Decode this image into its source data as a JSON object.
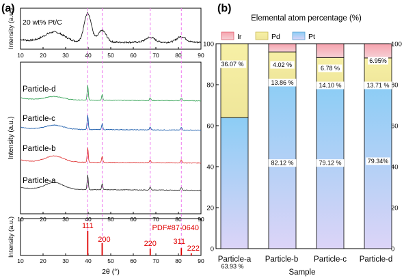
{
  "panels": {
    "a_label": "(a)",
    "b_label": "(b)"
  },
  "colors": {
    "pt_ref": "#000000",
    "particle_d": "#3aa55a",
    "particle_c": "#1f5fad",
    "particle_b": "#e03a3a",
    "particle_a": "#3a3a3a",
    "pdf_lines": "#e00000",
    "dashed_guides": "#ee77ee",
    "ir": "#f4a6ae",
    "pd": "#f2ec9c",
    "pt": "#a8d6f5",
    "pt_top": "#8ccdf5",
    "pt_bottom": "#d9d2f7"
  },
  "chart_data": [
    {
      "type": "line",
      "panel": "a-top",
      "sample_label": "20 wt% Pt/C",
      "ylabel": "Intensity (a.u.)",
      "xlim": [
        10,
        90
      ],
      "xticks": [
        10,
        20,
        30,
        40,
        50,
        60,
        70,
        80,
        90
      ],
      "peaks_2theta": [
        25,
        39.8,
        46.2,
        67.5,
        81.3
      ]
    },
    {
      "type": "line",
      "panel": "a-middle",
      "ylabel": "Intensity (a.u.)",
      "xlim": [
        10,
        90
      ],
      "xticks": [
        10,
        20,
        30,
        40,
        50,
        60,
        70,
        80,
        90
      ],
      "series": [
        {
          "name": "Particle-d"
        },
        {
          "name": "Particle-c"
        },
        {
          "name": "Particle-b"
        },
        {
          "name": "Particle-a"
        }
      ],
      "peaks_2theta": [
        39.8,
        46.2,
        67.5,
        81.3
      ],
      "guide_lines_2theta": [
        39.8,
        46.2,
        67.5,
        81.3
      ]
    },
    {
      "type": "bar",
      "panel": "a-bottom",
      "reference_label": "PDF#87-0640",
      "ylabel": "Intensity (a.u.)",
      "xlabel": "2θ (°)",
      "xlim": [
        10,
        90
      ],
      "xticks": [
        10,
        20,
        30,
        40,
        50,
        60,
        70,
        80,
        90
      ],
      "lines": [
        {
          "hkl": "111",
          "x": 39.8,
          "rel_intensity": 1.0
        },
        {
          "hkl": "200",
          "x": 46.2,
          "rel_intensity": 0.5
        },
        {
          "hkl": "220",
          "x": 67.5,
          "rel_intensity": 0.28
        },
        {
          "hkl": "311",
          "x": 81.3,
          "rel_intensity": 0.3
        },
        {
          "hkl": "222",
          "x": 85.7,
          "rel_intensity": 0.09
        }
      ]
    },
    {
      "type": "bar",
      "stacked": true,
      "panel": "b",
      "title": "Elemental atom percentage (%)",
      "xlabel": "Sample",
      "ylim": [
        0,
        100
      ],
      "yticks": [
        0,
        20,
        40,
        60,
        80,
        100
      ],
      "categories": [
        "Particle-a",
        "Particle-b",
        "Particle-c",
        "Particle-d"
      ],
      "legend": [
        "Ir",
        "Pd",
        "Pt"
      ],
      "legend_position": "top",
      "series": [
        {
          "name": "Pt",
          "values": [
            63.93,
            82.12,
            79.12,
            79.34
          ],
          "labels": [
            "63.93 %",
            "82.12 %",
            "79.12 %",
            "79.34%"
          ]
        },
        {
          "name": "Pd",
          "values": [
            36.07,
            13.86,
            14.1,
            13.71
          ],
          "labels": [
            "36.07 %",
            "13.86 %",
            "14.10 %",
            "13.71 %"
          ]
        },
        {
          "name": "Ir",
          "values": [
            0,
            4.02,
            6.78,
            6.95
          ],
          "labels": [
            "",
            "4.02 %",
            "6.78 %",
            "6.95%"
          ]
        }
      ]
    }
  ]
}
